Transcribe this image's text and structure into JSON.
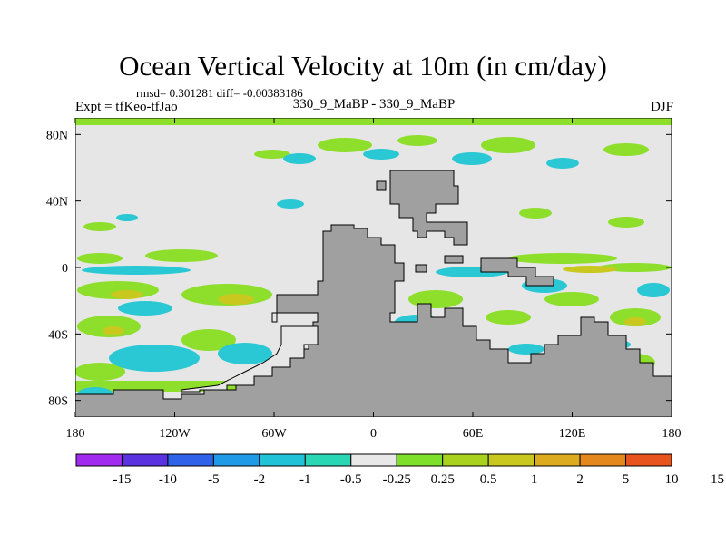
{
  "title": "Ocean Vertical Velocity at 10m (in cm/day)",
  "stats": "rmsd= 0.301281 diff= -0.00383186",
  "experiment": "Expt = tfKeo-tfJao",
  "subtitle": "330_9_MaBP - 330_9_MaBP",
  "season": "DJF",
  "map": {
    "lat_ticks": [
      {
        "value": 80,
        "label": "80N"
      },
      {
        "value": 40,
        "label": "40N"
      },
      {
        "value": 0,
        "label": "0"
      },
      {
        "value": -40,
        "label": "40S"
      },
      {
        "value": -80,
        "label": "80S"
      }
    ],
    "lon_ticks": [
      {
        "value": -180,
        "label": "180"
      },
      {
        "value": -120,
        "label": "120W"
      },
      {
        "value": -60,
        "label": "60W"
      },
      {
        "value": 0,
        "label": "0"
      },
      {
        "value": 60,
        "label": "60E"
      },
      {
        "value": 120,
        "label": "120E"
      },
      {
        "value": 180,
        "label": "180"
      }
    ],
    "land_color": "#a0a0a0",
    "ocean_near_zero_color": "#e6e6e6"
  },
  "colorbar": {
    "colors": [
      "#a12cf0",
      "#5a32e0",
      "#2e62e8",
      "#1f9ae6",
      "#20c2d8",
      "#2ad7b4",
      "#e8e8e8",
      "#7ee02a",
      "#a8d21e",
      "#c8c81e",
      "#dcac1e",
      "#e4881e",
      "#e8541e"
    ],
    "labels": [
      "-15",
      "-10",
      "-5",
      "-2",
      "-1",
      "-0.5",
      "-0.25",
      "0.25",
      "0.5",
      "1",
      "2",
      "5",
      "10",
      "15"
    ]
  }
}
